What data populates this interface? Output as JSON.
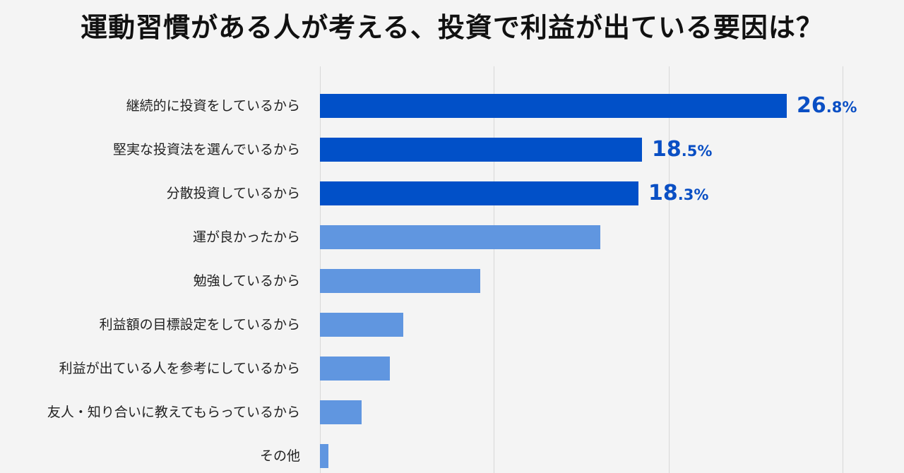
{
  "title": "運動習慣がある人が考える、投資で利益が出ている要因は？",
  "colors": {
    "highlight": "#0150c8",
    "normal": "#6096e0",
    "label_value": "#0a4fc4",
    "grid": "#d8d8d8",
    "background": "#f4f4f4"
  },
  "chart_data": {
    "type": "bar",
    "orientation": "horizontal",
    "title": "運動習慣がある人が考える、投資で利益が出ている要因は？",
    "xlabel": "",
    "ylabel": "",
    "xlim": [
      0,
      30
    ],
    "grid": true,
    "gridlines_at": [
      0,
      10,
      20,
      30
    ],
    "unit": "%",
    "categories": [
      "継続的に投資をしているから",
      "堅実な投資法を選んでいるから",
      "分散投資しているから",
      "運が良かったから",
      "勉強しているから",
      "利益額の目標設定をしているから",
      "利益が出ている人を参考にしているから",
      "友人・知り合いに教えてもらっているから",
      "その他"
    ],
    "values": [
      26.8,
      18.5,
      18.3,
      16.1,
      9.2,
      4.8,
      4.0,
      2.4,
      0.5
    ],
    "highlighted": [
      true,
      true,
      true,
      false,
      false,
      false,
      false,
      false,
      false
    ],
    "data_labels": [
      {
        "int": "26",
        "dec": ".8%"
      },
      {
        "int": "18",
        "dec": ".5%"
      },
      {
        "int": "18",
        "dec": ".3%"
      },
      null,
      null,
      null,
      null,
      null,
      null
    ]
  }
}
